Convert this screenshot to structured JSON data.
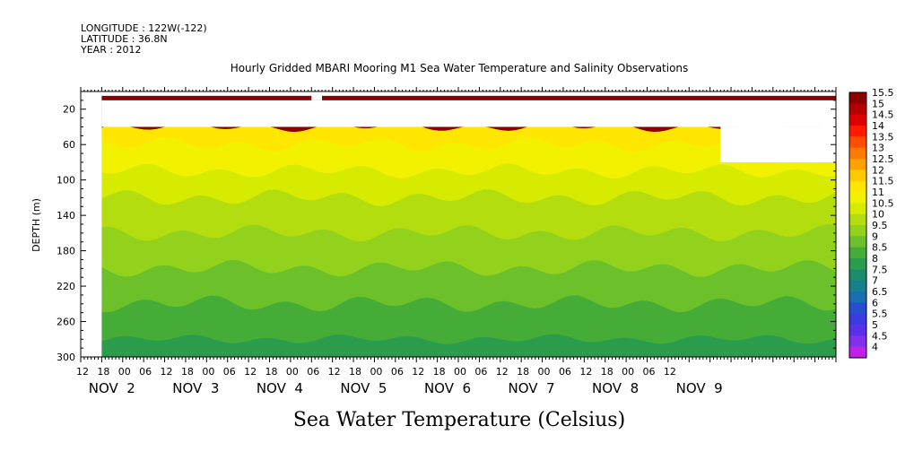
{
  "header": {
    "longitude": "LONGITUDE : 122W(-122)",
    "latitude": "LATITUDE : 36.8N",
    "year": "YEAR : 2012"
  },
  "chart_data": {
    "type": "heatmap",
    "title": "Hourly Gridded MBARI Mooring M1 Sea Water Temperature and Salinity Observations",
    "bottom_title": "Sea Water Temperature (Celsius)",
    "ylabel": "DEPTH (m)",
    "ylim": [
      300,
      0
    ],
    "y_ticks": [
      "20",
      "60",
      "100",
      "140",
      "180",
      "220",
      "260",
      "300"
    ],
    "x_hour_ticks": [
      "12",
      "18",
      "00",
      "06",
      "12",
      "18",
      "00",
      "06",
      "12",
      "18",
      "00",
      "06",
      "12",
      "18",
      "00",
      "06",
      "12",
      "18",
      "00",
      "06",
      "12",
      "18",
      "00",
      "06",
      "12",
      "18",
      "00",
      "06",
      "12"
    ],
    "x_day_labels": [
      "NOV  2",
      "NOV  3",
      "NOV  4",
      "NOV  5",
      "NOV  6",
      "NOV  7",
      "NOV  8",
      "NOV  9"
    ],
    "x_range_hours": [
      12,
      228
    ],
    "colorbar": {
      "levels": [
        "15.5",
        "15",
        "14.5",
        "14",
        "13.5",
        "13",
        "12.5",
        "12",
        "11.5",
        "11",
        "10.5",
        "10",
        "9.5",
        "9",
        "8.5",
        "8",
        "7.5",
        "7",
        "6.5",
        "6",
        "5.5",
        "5",
        "4.5",
        "4"
      ],
      "colors": [
        "#8b0000",
        "#b30000",
        "#dd0000",
        "#ff1a00",
        "#ff4d00",
        "#ff7a00",
        "#ffa200",
        "#ffc800",
        "#ffe600",
        "#f2f200",
        "#d6eb00",
        "#b4dd10",
        "#93d21c",
        "#6cc02a",
        "#45ad37",
        "#2a9c4c",
        "#1c8c6a",
        "#16808e",
        "#1a6fb2",
        "#2450d0",
        "#3a3be0",
        "#5a30ea",
        "#8430ea",
        "#c020e8"
      ]
    },
    "depth_bands": [
      {
        "range_m": [
          5,
          10
        ],
        "temperature_c": 15.5
      },
      {
        "range_m": [
          40,
          60
        ],
        "temperature_c": 11.5
      },
      {
        "range_m": [
          60,
          90
        ],
        "temperature_c": 11
      },
      {
        "range_m": [
          90,
          120
        ],
        "temperature_c": 10.5
      },
      {
        "range_m": [
          120,
          160
        ],
        "temperature_c": 10
      },
      {
        "range_m": [
          160,
          200
        ],
        "temperature_c": 9.5
      },
      {
        "range_m": [
          200,
          240
        ],
        "temperature_c": 9
      },
      {
        "range_m": [
          240,
          280
        ],
        "temperature_c": 8.5
      },
      {
        "range_m": [
          280,
          300
        ],
        "temperature_c": 8
      }
    ],
    "missing_data": [
      {
        "hours": [
          12,
          18
        ],
        "depth_m": [
          0,
          300
        ]
      },
      {
        "hours": [
          18,
          228
        ],
        "depth_m": [
          10,
          40
        ]
      },
      {
        "hours": [
          78,
          81
        ],
        "depth_m": [
          0,
          10
        ]
      },
      {
        "hours": [
          195,
          228
        ],
        "depth_m": [
          40,
          80
        ]
      }
    ]
  }
}
